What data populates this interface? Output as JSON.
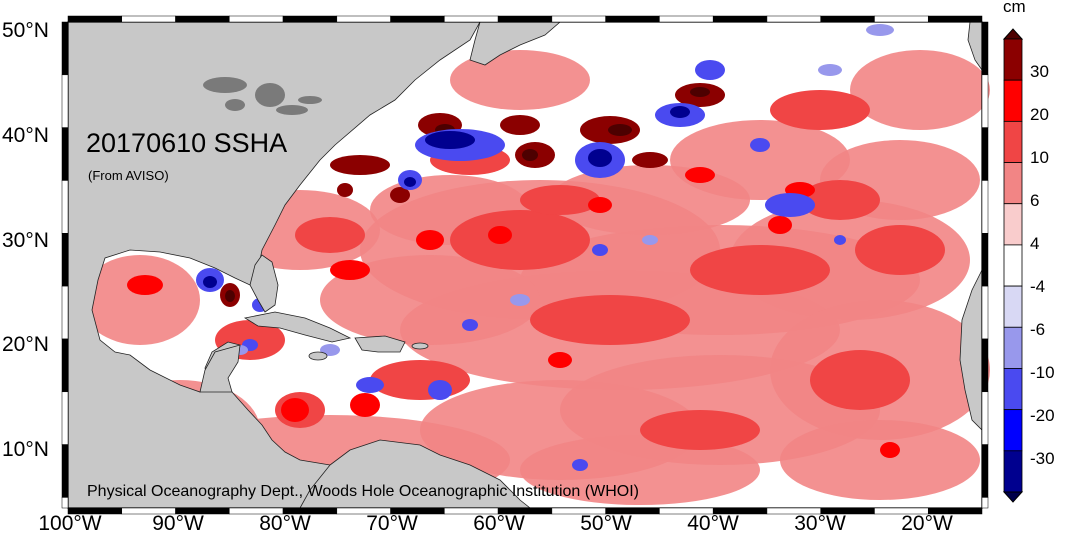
{
  "map": {
    "title": "20170610 SSHA",
    "subtitle": "(From AVISO)",
    "credit": "Physical Oceanography Dept., Woods Hole Oceanographic Institution (WHOI)",
    "lat_labels": [
      "50°N",
      "40°N",
      "30°N",
      "20°N",
      "10°N"
    ],
    "lon_labels": [
      "100°W",
      "90°W",
      "80°W",
      "70°W",
      "60°W",
      "50°W",
      "40°W",
      "30°W",
      "20°W"
    ],
    "extent": {
      "lon_min": -100,
      "lon_max": -15,
      "lat_min": 5,
      "lat_max": 51
    }
  },
  "colorbar": {
    "unit": "cm",
    "labels": [
      "30",
      "20",
      "10",
      "6",
      "4",
      "-4",
      "-6",
      "-10",
      "-20",
      "-30"
    ],
    "colors": [
      "#4d0000",
      "#8b0000",
      "#ff0000",
      "#f04545",
      "#f28585",
      "#f9cccc",
      "#ffffff",
      "#d8d8f4",
      "#9898ec",
      "#4a4af0",
      "#0000ff",
      "#00008f",
      "#00004a"
    ]
  },
  "colors": {
    "land": "#c8c8c8",
    "ocean": "#ffffff"
  }
}
